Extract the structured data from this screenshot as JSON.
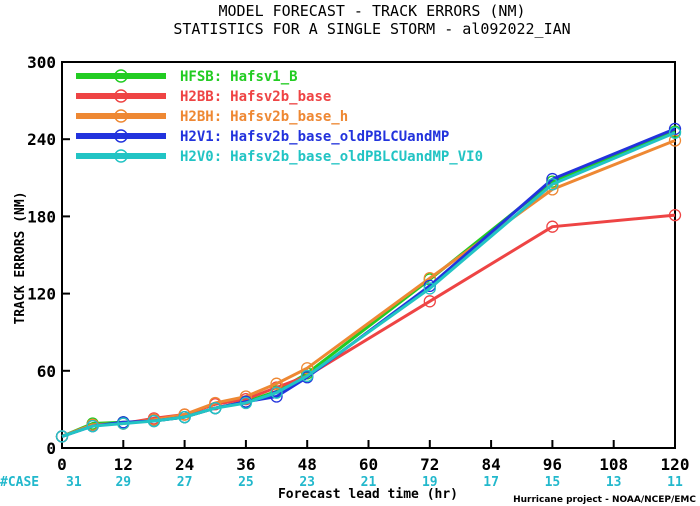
{
  "chart_data": {
    "type": "line",
    "title": "MODEL FORECAST - TRACK ERRORS (NM)",
    "subtitle": "STATISTICS FOR A SINGLE STORM - al092022_IAN",
    "xlabel": "Forecast lead time (hr)",
    "ylabel": "TRACK ERRORS (NM)",
    "xlim": [
      0,
      120
    ],
    "ylim": [
      0,
      300
    ],
    "x_ticks": [
      0,
      12,
      24,
      36,
      48,
      60,
      72,
      84,
      96,
      108,
      120
    ],
    "y_ticks": [
      0,
      60,
      120,
      180,
      240,
      300
    ],
    "x_tick_labels": [
      "0",
      "12",
      "24",
      "36",
      "48",
      "60",
      "72",
      "84",
      "96",
      "108",
      "120"
    ],
    "y_tick_labels": [
      "0",
      "60",
      "120",
      "180",
      "240",
      "300"
    ],
    "case_label": "#CASE",
    "case_lead_times": [
      0,
      12,
      24,
      36,
      48,
      60,
      72,
      84,
      96,
      108,
      120
    ],
    "case_counts": [
      "31",
      "29",
      "27",
      "25",
      "23",
      "21",
      "19",
      "17",
      "15",
      "13",
      "11"
    ],
    "credit": "Hurricane project - NOAA/NCEP/EMC",
    "legend_position": "top-left",
    "grid": false,
    "series": [
      {
        "code": "HFSB:",
        "name": "Hafsv1_B",
        "color": "#22cc22",
        "x": [
          0,
          6,
          12,
          18,
          24,
          30,
          36,
          42,
          48,
          72,
          96,
          120
        ],
        "y": [
          9,
          19,
          20,
          21,
          24,
          31,
          36,
          44,
          58,
          131,
          207,
          246
        ]
      },
      {
        "code": "H2BB:",
        "name": "Hafsv2b_base",
        "color": "#ee4444",
        "x": [
          0,
          6,
          12,
          18,
          24,
          30,
          36,
          42,
          48,
          72,
          96,
          120
        ],
        "y": [
          9,
          18,
          19,
          23,
          26,
          34,
          38,
          47,
          56,
          114,
          172,
          181
        ]
      },
      {
        "code": "H2BH:",
        "name": "Hafsv2b_base_h",
        "color": "#ee8833",
        "x": [
          0,
          6,
          12,
          18,
          24,
          30,
          36,
          42,
          48,
          72,
          96,
          120
        ],
        "y": [
          9,
          18,
          19,
          22,
          26,
          35,
          40,
          50,
          62,
          132,
          201,
          239
        ]
      },
      {
        "code": "H2V1:",
        "name": "Hafsv2b_base_oldPBLCUandMP",
        "color": "#2233dd",
        "x": [
          0,
          6,
          12,
          18,
          24,
          30,
          36,
          42,
          48,
          72,
          96,
          120
        ],
        "y": [
          9,
          17,
          20,
          21,
          24,
          31,
          36,
          40,
          55,
          126,
          209,
          248
        ]
      },
      {
        "code": "H2V0:",
        "name": "Hafsv2b_base_oldPBLCUandMP_VI0",
        "color": "#22c4c4",
        "x": [
          0,
          6,
          12,
          18,
          24,
          30,
          36,
          42,
          48,
          72,
          96,
          120
        ],
        "y": [
          9,
          17,
          19,
          21,
          24,
          31,
          35,
          43,
          56,
          124,
          205,
          245
        ]
      }
    ],
    "case_color": "#22b8cc"
  }
}
